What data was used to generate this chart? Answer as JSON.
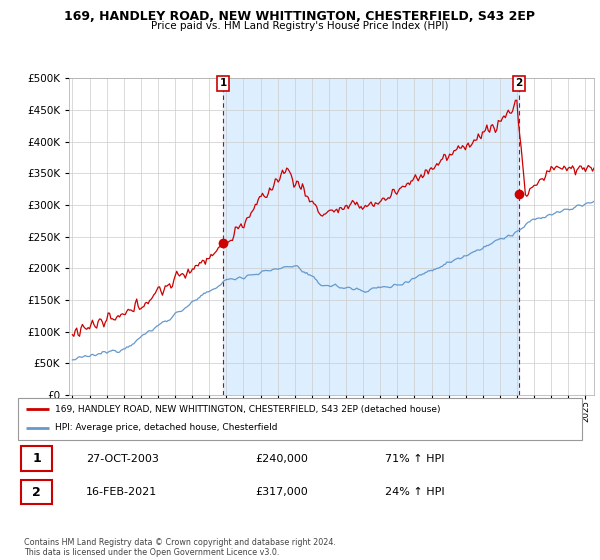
{
  "title": "169, HANDLEY ROAD, NEW WHITTINGTON, CHESTERFIELD, S43 2EP",
  "subtitle": "Price paid vs. HM Land Registry's House Price Index (HPI)",
  "legend_line1": "169, HANDLEY ROAD, NEW WHITTINGTON, CHESTERFIELD, S43 2EP (detached house)",
  "legend_line2": "HPI: Average price, detached house, Chesterfield",
  "point1_date": "27-OCT-2003",
  "point1_price": "£240,000",
  "point1_hpi": "71% ↑ HPI",
  "point1_x": 2003.82,
  "point1_y": 240000,
  "point2_date": "16-FEB-2021",
  "point2_price": "£317,000",
  "point2_hpi": "24% ↑ HPI",
  "point2_x": 2021.12,
  "point2_y": 317000,
  "red_color": "#cc0000",
  "blue_color": "#6699cc",
  "fill_color": "#ddeeff",
  "grid_color": "#cccccc",
  "footer": "Contains HM Land Registry data © Crown copyright and database right 2024.\nThis data is licensed under the Open Government Licence v3.0.",
  "ylim": [
    0,
    500000
  ],
  "xlim": [
    1994.8,
    2025.5
  ]
}
